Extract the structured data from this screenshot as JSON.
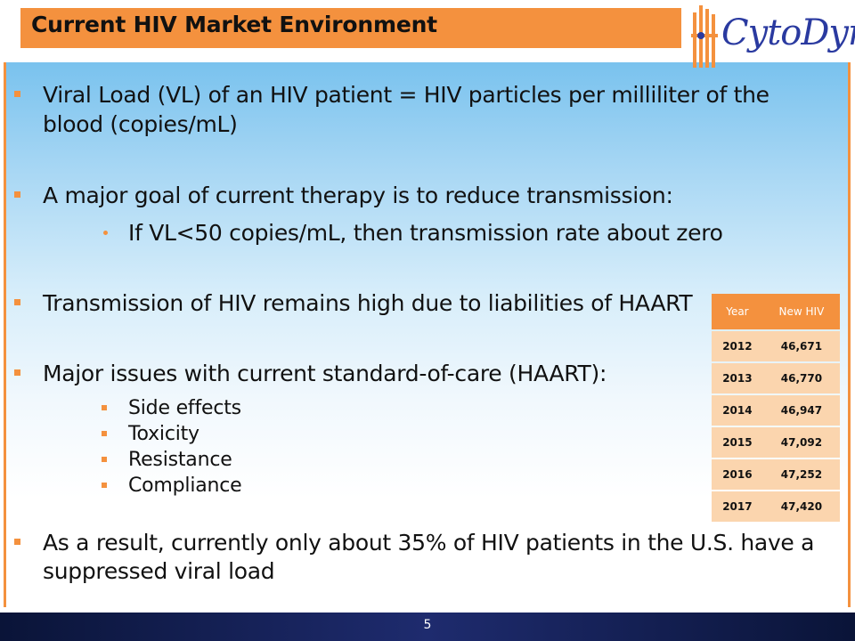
{
  "title": "Current HIV Market Environment",
  "logo": {
    "text": "CytoDyn"
  },
  "bullets": {
    "b1": {
      "line1": "Viral Load (VL)  of an HIV patient = HIV particles per milliliter of the",
      "line2": "blood (copies/mL)"
    },
    "b2": {
      "line1": "A major goal of current therapy is to reduce transmission:",
      "sub1": "If VL<50 copies/mL, then transmission rate about zero"
    },
    "b3": {
      "line1": "Transmission of HIV remains high due to liabilities of HAART"
    },
    "b4": {
      "line1": "Major issues with current standard-of-care (HAART):",
      "subs": [
        "Side effects",
        "Toxicity",
        "Resistance",
        "Compliance"
      ]
    },
    "b5": {
      "line1": "As a result, currently only about 35% of HIV patients in the U.S. have a",
      "line2": "suppressed viral load"
    }
  },
  "table": {
    "headers": [
      "Year",
      "New HIV"
    ],
    "rows": [
      [
        "2012",
        "46,671"
      ],
      [
        "2013",
        "46,770"
      ],
      [
        "2014",
        "46,947"
      ],
      [
        "2015",
        "47,092"
      ],
      [
        "2016",
        "47,252"
      ],
      [
        "2017",
        "47,420"
      ]
    ]
  },
  "page_number": "5",
  "colors": {
    "accent": "#f4913e",
    "brand": "#2a3aa0",
    "footer": "#1e2b6e",
    "table_cell": "#fbd5ae"
  }
}
